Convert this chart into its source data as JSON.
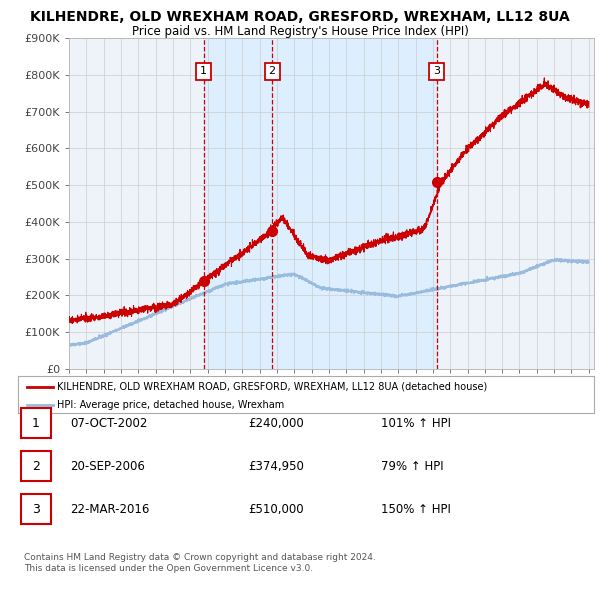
{
  "title": "KILHENDRE, OLD WREXHAM ROAD, GRESFORD, WREXHAM, LL12 8UA",
  "subtitle": "Price paid vs. HM Land Registry's House Price Index (HPI)",
  "ylim": [
    0,
    900000
  ],
  "yticks": [
    0,
    100000,
    200000,
    300000,
    400000,
    500000,
    600000,
    700000,
    800000,
    900000
  ],
  "ytick_labels": [
    "£0",
    "£100K",
    "£200K",
    "£300K",
    "£400K",
    "£500K",
    "£600K",
    "£700K",
    "£800K",
    "£900K"
  ],
  "x_start_year": 1995,
  "x_end_year": 2025,
  "sale_color": "#cc0000",
  "hpi_color": "#99bbdd",
  "vline_color": "#cc0000",
  "shade_color": "#ddeeff",
  "grid_color": "#cccccc",
  "background_color": "#eef3fa",
  "sale_points": [
    {
      "year": 2002.77,
      "price": 240000,
      "label": "1"
    },
    {
      "year": 2006.72,
      "price": 374950,
      "label": "2"
    },
    {
      "year": 2016.22,
      "price": 510000,
      "label": "3"
    }
  ],
  "legend_red_label": "KILHENDRE, OLD WREXHAM ROAD, GRESFORD, WREXHAM, LL12 8UA (detached house)",
  "legend_blue_label": "HPI: Average price, detached house, Wrexham",
  "table_rows": [
    {
      "num": "1",
      "date": "07-OCT-2002",
      "price": "£240,000",
      "change": "101% ↑ HPI"
    },
    {
      "num": "2",
      "date": "20-SEP-2006",
      "price": "£374,950",
      "change": "79% ↑ HPI"
    },
    {
      "num": "3",
      "date": "22-MAR-2016",
      "price": "£510,000",
      "change": "150% ↑ HPI"
    }
  ],
  "footer": "Contains HM Land Registry data © Crown copyright and database right 2024.\nThis data is licensed under the Open Government Licence v3.0."
}
